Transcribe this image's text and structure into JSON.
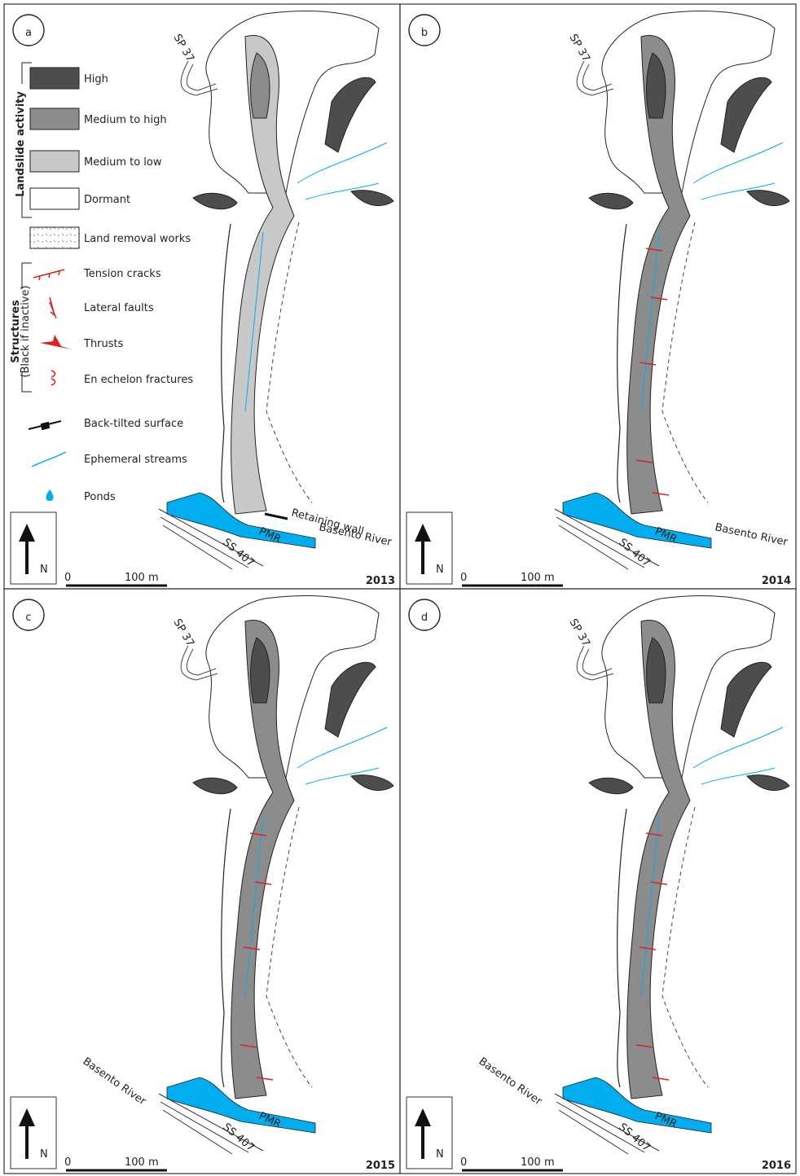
{
  "legend": {
    "activity_title": "Landslide activity",
    "activity": [
      "High",
      "Medium to high",
      "Medium to low",
      "Dormant",
      "Land removal works"
    ],
    "structures_title": "Structures",
    "structures_note": "(Black if inactive)",
    "structures": [
      "Tension cracks",
      "Lateral faults",
      "Thrusts",
      "En echelon fractures",
      "Back-tilted surface",
      "Ephemeral streams",
      "Ponds"
    ]
  },
  "panels": [
    {
      "label": "a",
      "year": "2013",
      "road_sp": "SP 37",
      "road_ss": "SS 407",
      "road_pmr": "PMR",
      "river": "Basento River",
      "retaining_wall": "Retaining wall",
      "north": "N",
      "scale": {
        "start": "0",
        "end": "100 m"
      }
    },
    {
      "label": "b",
      "year": "2014",
      "road_sp": "SP 37",
      "road_ss": "SS 407",
      "road_pmr": "PMR",
      "river": "Basento River",
      "north": "N",
      "scale": {
        "start": "0",
        "end": "100 m"
      }
    },
    {
      "label": "c",
      "year": "2015",
      "road_sp": "SP 37",
      "road_ss": "SS 407",
      "road_pmr": "PMR",
      "river": "Basento River",
      "north": "N",
      "scale": {
        "start": "0",
        "end": "100 m"
      }
    },
    {
      "label": "d",
      "year": "2016",
      "road_sp": "SP 37",
      "road_ss": "SS 407",
      "road_pmr": "PMR",
      "river": "Basento River",
      "north": "N",
      "scale": {
        "start": "0",
        "end": "100 m"
      }
    }
  ]
}
